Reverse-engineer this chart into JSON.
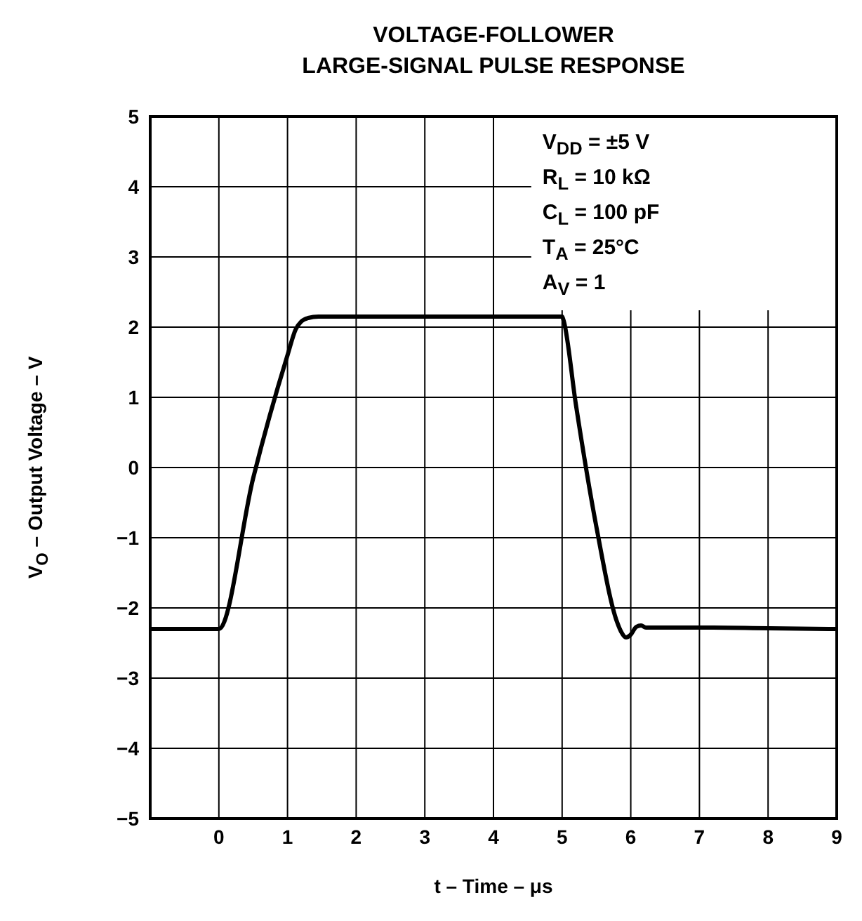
{
  "chart_data": {
    "type": "line",
    "title": "VOLTAGE-FOLLOWER\nLARGE-SIGNAL PULSE RESPONSE",
    "xlabel": "t – Time – μs",
    "ylabel": "V$_{O}$ – Output Voltage – V",
    "annotations": [
      "V$_{DD}$ = ±5 V",
      "R$_{L}$ = 10 kΩ",
      "C$_{L}$ = 100 pF",
      "T$_{A}$ = 25°C",
      "A$_{V}$ = 1"
    ],
    "x": [
      -1,
      0,
      0.5,
      1,
      1.12,
      1.2,
      1.3,
      1.45,
      2,
      3,
      4,
      5,
      5.02,
      5.2,
      5.5,
      5.8,
      5.86,
      5.93,
      6.0,
      6.08,
      6.15,
      6.22,
      6.4,
      7,
      8,
      9
    ],
    "series": [
      {
        "color": "#000000",
        "values": [
          -2.3,
          -2.3,
          -0.15,
          1.6,
          1.97,
          2.08,
          2.13,
          2.15,
          2.15,
          2.15,
          2.15,
          2.15,
          2.1,
          0.9,
          -0.85,
          -2.2,
          -2.34,
          -2.42,
          -2.38,
          -2.27,
          -2.25,
          -2.28,
          -2.28,
          -2.28,
          -2.29,
          -2.3
        ]
      }
    ],
    "xlim": [
      -1,
      9
    ],
    "xticks": [
      {
        "value": -1,
        "label": null
      },
      0,
      1,
      2,
      3,
      4,
      5,
      6,
      7,
      8,
      9
    ],
    "ylim": [
      -5,
      5
    ],
    "yticks": [
      {
        "value": -5,
        "label": "−5"
      },
      {
        "value": -4,
        "label": "−4"
      },
      {
        "value": -3,
        "label": "−3"
      },
      {
        "value": -2,
        "label": "−2"
      },
      {
        "value": -1,
        "label": "−1"
      },
      0,
      1,
      2,
      3,
      4,
      5
    ],
    "grid": true,
    "marker": "none",
    "line_style": "solid"
  }
}
